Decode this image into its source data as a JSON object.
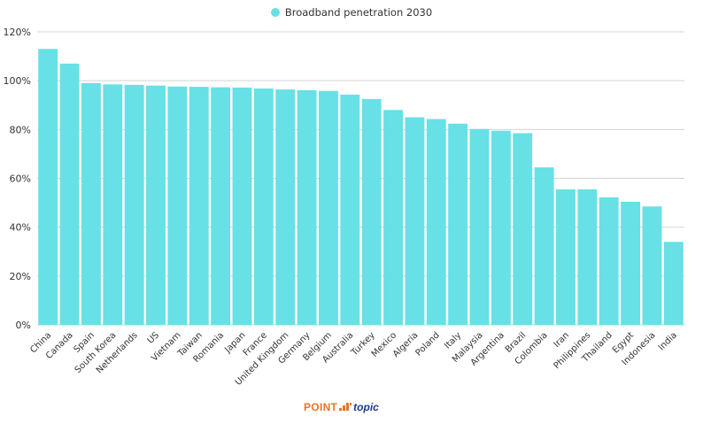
{
  "chart_data": {
    "type": "bar",
    "title": "",
    "xlabel": "",
    "ylabel": "",
    "ylim": [
      0,
      120
    ],
    "yticks": [
      0,
      20,
      40,
      60,
      80,
      100,
      120
    ],
    "ytick_labels": [
      "0%",
      "20%",
      "40%",
      "60%",
      "80%",
      "100%",
      "120%"
    ],
    "grid": true,
    "legend": {
      "position": "top-center",
      "entries": [
        "Broadband penetration 2030"
      ]
    },
    "series": [
      {
        "name": "Broadband penetration 2030",
        "color": "#67e0e6",
        "values": [
          113,
          107,
          99,
          98.5,
          98.3,
          98,
          97.6,
          97.5,
          97.3,
          97.2,
          96.8,
          96.4,
          96.1,
          95.8,
          94.3,
          92.5,
          88,
          85,
          84.3,
          82.4,
          80.2,
          79.5,
          78.5,
          64.5,
          55.5,
          55.5,
          52.2,
          50.4,
          48.5,
          34
        ]
      }
    ],
    "categories": [
      "China",
      "Canada",
      "Spain",
      "South Korea",
      "Netherlands",
      "US",
      "Vietnam",
      "Taiwan",
      "Romania",
      "Japan",
      "France",
      "United Kingdom",
      "Germany",
      "Belgium",
      "Australia",
      "Turkey",
      "Mexico",
      "Algeria",
      "Poland",
      "Italy",
      "Malaysia",
      "Argentina",
      "Brazil",
      "Colombia",
      "Iran",
      "Philippines",
      "Thailand",
      "Egypt",
      "Indonesia",
      "India"
    ]
  },
  "legend_label": "Broadband penetration 2030",
  "colors": {
    "bar": "#67e0e6",
    "grid": "#d4d4d4",
    "text": "#333333",
    "logo_orange": "#e8742a",
    "logo_blue": "#1c3a8a"
  },
  "logo": {
    "part1": "POINT",
    "part2": "topic"
  }
}
